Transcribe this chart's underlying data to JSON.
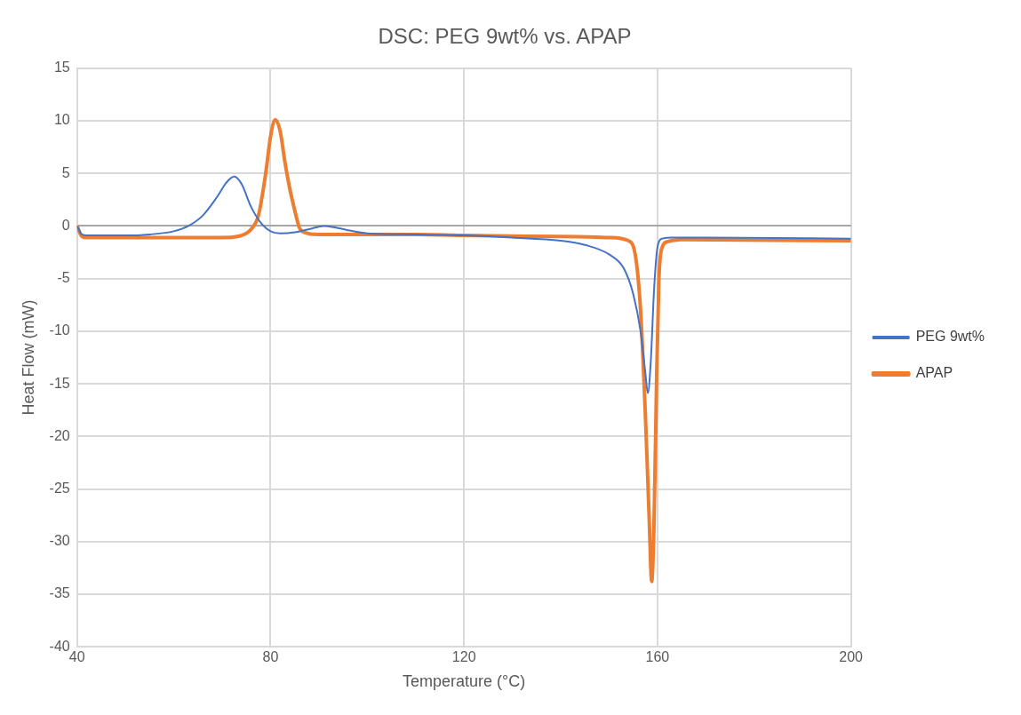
{
  "chart_data": {
    "type": "line",
    "title": "DSC: PEG 9wt% vs. APAP",
    "xlabel": "Temperature (°C)",
    "ylabel": "Heat Flow (mW)",
    "xlim": [
      40,
      200
    ],
    "xticks": [
      40,
      80,
      120,
      160,
      200
    ],
    "ylim": [
      -40,
      15
    ],
    "yticks": [
      -40,
      -35,
      -30,
      -25,
      -20,
      -15,
      -10,
      -5,
      0,
      5,
      10,
      15
    ],
    "grid": true,
    "legend": "right",
    "marker": "none",
    "line_style": "solid",
    "series": [
      {
        "name": "PEG 9wt%",
        "color": "#4472c4",
        "x": [
          40,
          41,
          42,
          50,
          55,
          60,
          63,
          66,
          69,
          71,
          72.5,
          74,
          76,
          78,
          80,
          82,
          85,
          88,
          91,
          93,
          96,
          100,
          110,
          120,
          130,
          140,
          145,
          150,
          153,
          155,
          156.5,
          157.5,
          158,
          158.6,
          159.3,
          160,
          161,
          163,
          170,
          200
        ],
        "values": [
          0,
          -0.8,
          -0.9,
          -0.9,
          -0.8,
          -0.5,
          0,
          1,
          2.8,
          4.2,
          4.7,
          4,
          1.8,
          0.3,
          -0.5,
          -0.7,
          -0.6,
          -0.3,
          0,
          -0.1,
          -0.4,
          -0.7,
          -0.8,
          -0.9,
          -1.1,
          -1.4,
          -1.8,
          -2.7,
          -4,
          -6.5,
          -10,
          -14,
          -15.9,
          -13,
          -6,
          -2,
          -1.2,
          -1.1,
          -1.1,
          -1.2
        ]
      },
      {
        "name": "APAP",
        "color": "#ed7d31",
        "x": [
          40,
          41,
          42,
          60,
          70,
          74,
          76,
          77.5,
          79,
          80,
          81,
          82,
          83,
          84,
          85,
          86,
          87,
          90,
          100,
          110,
          120,
          140,
          150,
          154,
          155.5,
          156.5,
          157.5,
          158.3,
          158.8,
          159.3,
          159.8,
          160.3,
          161,
          162,
          165,
          200
        ],
        "values": [
          0,
          -1,
          -1.1,
          -1.1,
          -1.1,
          -0.9,
          -0.3,
          1,
          5,
          8.5,
          10.1,
          9,
          6,
          3.5,
          1.5,
          -0.2,
          -0.6,
          -0.8,
          -0.8,
          -0.8,
          -0.9,
          -1,
          -1.1,
          -1.4,
          -3,
          -8,
          -18,
          -28,
          -33.8,
          -28,
          -15,
          -5,
          -2,
          -1.5,
          -1.3,
          -1.4
        ]
      }
    ]
  }
}
